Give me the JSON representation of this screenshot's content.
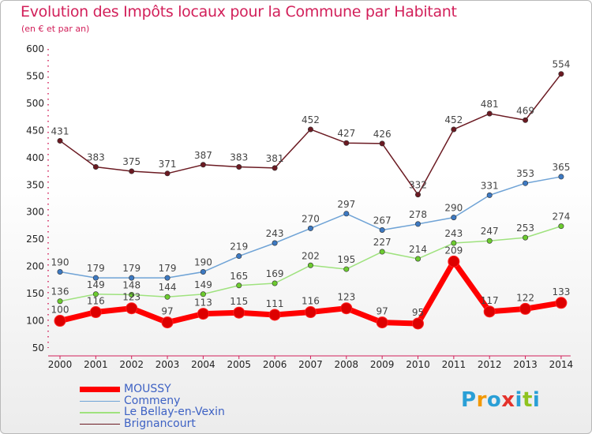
{
  "title": "Evolution des Impôts locaux pour la Commune par Habitant",
  "subtitle": "(en € et par an)",
  "logo": {
    "text": "Proxiti",
    "letter_colors": [
      "#2a9fd6",
      "#f39800",
      "#2a9fd6",
      "#e4322b",
      "#2a9fd6",
      "#8fc31f",
      "#2a9fd6"
    ]
  },
  "chart_data": {
    "type": "line",
    "title": "Evolution des Impôts locaux pour la Commune par Habitant",
    "subtitle": "(en € et par an)",
    "xlabel": "",
    "ylabel": "",
    "x": [
      "2000",
      "2001",
      "2002",
      "2003",
      "2004",
      "2005",
      "2006",
      "2007",
      "2008",
      "2009",
      "2010",
      "2011",
      "2012",
      "2013",
      "2014"
    ],
    "ylim": [
      50,
      600
    ],
    "yticks": [
      50,
      100,
      150,
      200,
      250,
      300,
      350,
      400,
      450,
      500,
      550,
      600
    ],
    "grid": false,
    "legend_position": "bottom-left",
    "series": [
      {
        "name": "Brignancourt",
        "color": "#6b1a22",
        "marker": "#6b1a22",
        "values": [
          431,
          383,
          375,
          371,
          387,
          383,
          381,
          452,
          427,
          426,
          332,
          452,
          481,
          469,
          554
        ]
      },
      {
        "name": "Commeny",
        "color": "#6fa3d6",
        "marker": "#3d79c2",
        "values": [
          190,
          179,
          179,
          179,
          190,
          219,
          243,
          270,
          297,
          267,
          278,
          290,
          331,
          353,
          365
        ]
      },
      {
        "name": "Le Bellay-en-Vexin",
        "color": "#9fe27e",
        "marker": "#6ccb2f",
        "values": [
          136,
          149,
          148,
          144,
          149,
          165,
          169,
          202,
          195,
          227,
          214,
          243,
          247,
          253,
          274
        ]
      },
      {
        "name": "MOUSSY",
        "color": "#ff0000",
        "marker": "#dd0000",
        "values": [
          100,
          116,
          123,
          97,
          113,
          115,
          111,
          116,
          123,
          97,
          95,
          209,
          117,
          122,
          133
        ]
      }
    ],
    "legend": [
      "MOUSSY",
      "Commeny",
      "Le Bellay-en-Vexin",
      "Brignancourt"
    ]
  }
}
